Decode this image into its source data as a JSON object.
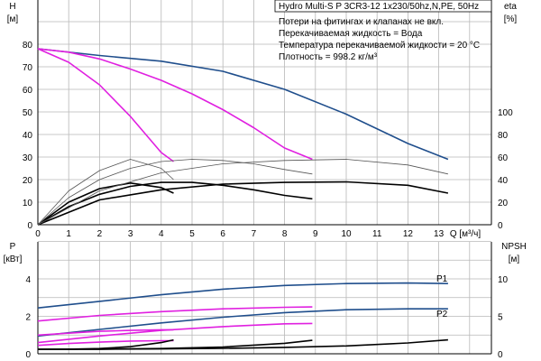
{
  "chart_data": [
    {
      "type": "line",
      "title": "Hydro Multi-S P 3CR3-12 1x230/50hz,N,PE, 50Hz",
      "notes": [
        "Потери на фитингах и клапанах не вкл.",
        "Перекачиваемая жидкость = Вода",
        "Температура перекачиваемой жидкости = 20 °C",
        "Плотность = 998.2 кг/м³"
      ],
      "ylabel_left": [
        "H",
        "[м]"
      ],
      "ylabel_right": [
        "eta",
        "[%]"
      ],
      "xlabel": "Q [м³/ч]",
      "xlim": [
        0,
        14
      ],
      "ylim": [
        0,
        90
      ],
      "ylim_right": [
        0,
        180
      ],
      "xticks": [
        "0",
        "1",
        "2",
        "3",
        "4",
        "5",
        "6",
        "7",
        "8",
        "9",
        "10",
        "11",
        "12",
        "13"
      ],
      "yticks": [
        "0",
        "10",
        "20",
        "30",
        "40",
        "50",
        "60",
        "70",
        "80"
      ],
      "yticks_right": [
        "0",
        "20",
        "40",
        "60",
        "80",
        "100"
      ],
      "grid": true,
      "series": [
        {
          "kind": "H",
          "color": "#1f4e8c",
          "x": [
            0,
            2,
            4,
            6,
            8,
            10,
            12,
            13.3
          ],
          "y": [
            78,
            75,
            72.5,
            68,
            60,
            49,
            36,
            29
          ]
        },
        {
          "kind": "H",
          "color": "#e020e0",
          "x": [
            0,
            1,
            2,
            3,
            4,
            5,
            6,
            7,
            8,
            8.9
          ],
          "y": [
            78,
            76.5,
            73.5,
            69,
            64,
            58,
            51,
            43,
            34,
            29
          ]
        },
        {
          "kind": "H",
          "color": "#e020e0",
          "x": [
            0,
            1,
            2,
            3,
            4,
            4.4
          ],
          "y": [
            78,
            72,
            62,
            48,
            32,
            28
          ]
        },
        {
          "kind": "eta",
          "color": "#000000",
          "x": [
            0,
            2,
            4,
            6,
            8,
            10,
            12,
            13.3
          ],
          "y": [
            0,
            22,
            31,
            36,
            37.5,
            38,
            35,
            28
          ]
        },
        {
          "kind": "eta",
          "color": "#000000",
          "x": [
            0,
            1,
            2,
            3,
            4,
            5,
            6,
            7,
            8,
            8.9
          ],
          "y": [
            0,
            16,
            27,
            34,
            37.5,
            37.5,
            35,
            31,
            26,
            23
          ]
        },
        {
          "kind": "eta",
          "color": "#000000",
          "x": [
            0,
            1,
            2,
            3,
            4,
            4.4
          ],
          "y": [
            0,
            20,
            32,
            37,
            33,
            28
          ]
        },
        {
          "kind": "eta",
          "color": "#555555",
          "x": [
            0,
            2,
            4,
            6,
            8,
            10,
            12,
            13.3
          ],
          "y": [
            0,
            30,
            46,
            54,
            57,
            58,
            53,
            45
          ]
        },
        {
          "kind": "eta",
          "color": "#555555",
          "x": [
            0,
            1,
            2,
            3,
            4,
            5,
            6,
            7,
            8,
            8.9
          ],
          "y": [
            0,
            24,
            40,
            50,
            56,
            58,
            57,
            54,
            49,
            45
          ]
        },
        {
          "kind": "eta",
          "color": "#555555",
          "x": [
            0,
            1,
            2,
            3,
            4,
            4.4
          ],
          "y": [
            0,
            30,
            48,
            58,
            50,
            40
          ]
        }
      ]
    },
    {
      "type": "line",
      "ylabel_left": [
        "P",
        "[кВт]"
      ],
      "ylabel_right": [
        "NPSH",
        "[м]"
      ],
      "xlim": [
        0,
        14
      ],
      "ylim": [
        0,
        5
      ],
      "ylim_right": [
        0,
        12.5
      ],
      "yticks": [
        "0",
        "2",
        "4"
      ],
      "yticks_right": [
        "0",
        "5",
        "10"
      ],
      "grid": true,
      "labels": [
        "P1",
        "P2"
      ],
      "series": [
        {
          "kind": "P1",
          "color": "#1f4e8c",
          "x": [
            0,
            2,
            4,
            6,
            8,
            10,
            12,
            13.3
          ],
          "y": [
            2.45,
            2.8,
            3.15,
            3.45,
            3.65,
            3.75,
            3.78,
            3.75
          ]
        },
        {
          "kind": "P2",
          "color": "#1f4e8c",
          "x": [
            0,
            2,
            4,
            6,
            8,
            10,
            12,
            13.3
          ],
          "y": [
            0.95,
            1.3,
            1.65,
            1.95,
            2.2,
            2.35,
            2.4,
            2.4
          ]
        },
        {
          "kind": "P1",
          "color": "#e020e0",
          "x": [
            0,
            2,
            4,
            6,
            8,
            8.9
          ],
          "y": [
            1.75,
            2.05,
            2.25,
            2.4,
            2.48,
            2.5
          ]
        },
        {
          "kind": "P2",
          "color": "#e020e0",
          "x": [
            0,
            2,
            4,
            6,
            8,
            8.9
          ],
          "y": [
            0.6,
            0.95,
            1.25,
            1.45,
            1.6,
            1.62
          ]
        },
        {
          "kind": "P1",
          "color": "#e020e0",
          "x": [
            0,
            1,
            2,
            3,
            4,
            4.4
          ],
          "y": [
            1.0,
            1.1,
            1.2,
            1.25,
            1.28,
            1.28
          ]
        },
        {
          "kind": "P2",
          "color": "#e020e0",
          "x": [
            0,
            1,
            2,
            3,
            4,
            4.4
          ],
          "y": [
            0.45,
            0.55,
            0.62,
            0.68,
            0.7,
            0.7
          ]
        },
        {
          "kind": "NPSH",
          "color": "#000000",
          "x": [
            0,
            2,
            4,
            6,
            8,
            10,
            12,
            13.3
          ],
          "y": [
            0.6,
            0.62,
            0.65,
            0.72,
            0.85,
            1.05,
            1.45,
            1.85
          ]
        },
        {
          "kind": "NPSH",
          "color": "#000000",
          "x": [
            0,
            2,
            4,
            6,
            8,
            8.9
          ],
          "y": [
            0.6,
            0.62,
            0.7,
            0.9,
            1.4,
            1.8
          ]
        },
        {
          "kind": "NPSH",
          "color": "#000000",
          "x": [
            0,
            1,
            2,
            3,
            4,
            4.4
          ],
          "y": [
            0.6,
            0.62,
            0.7,
            0.95,
            1.5,
            1.85
          ]
        }
      ]
    }
  ]
}
